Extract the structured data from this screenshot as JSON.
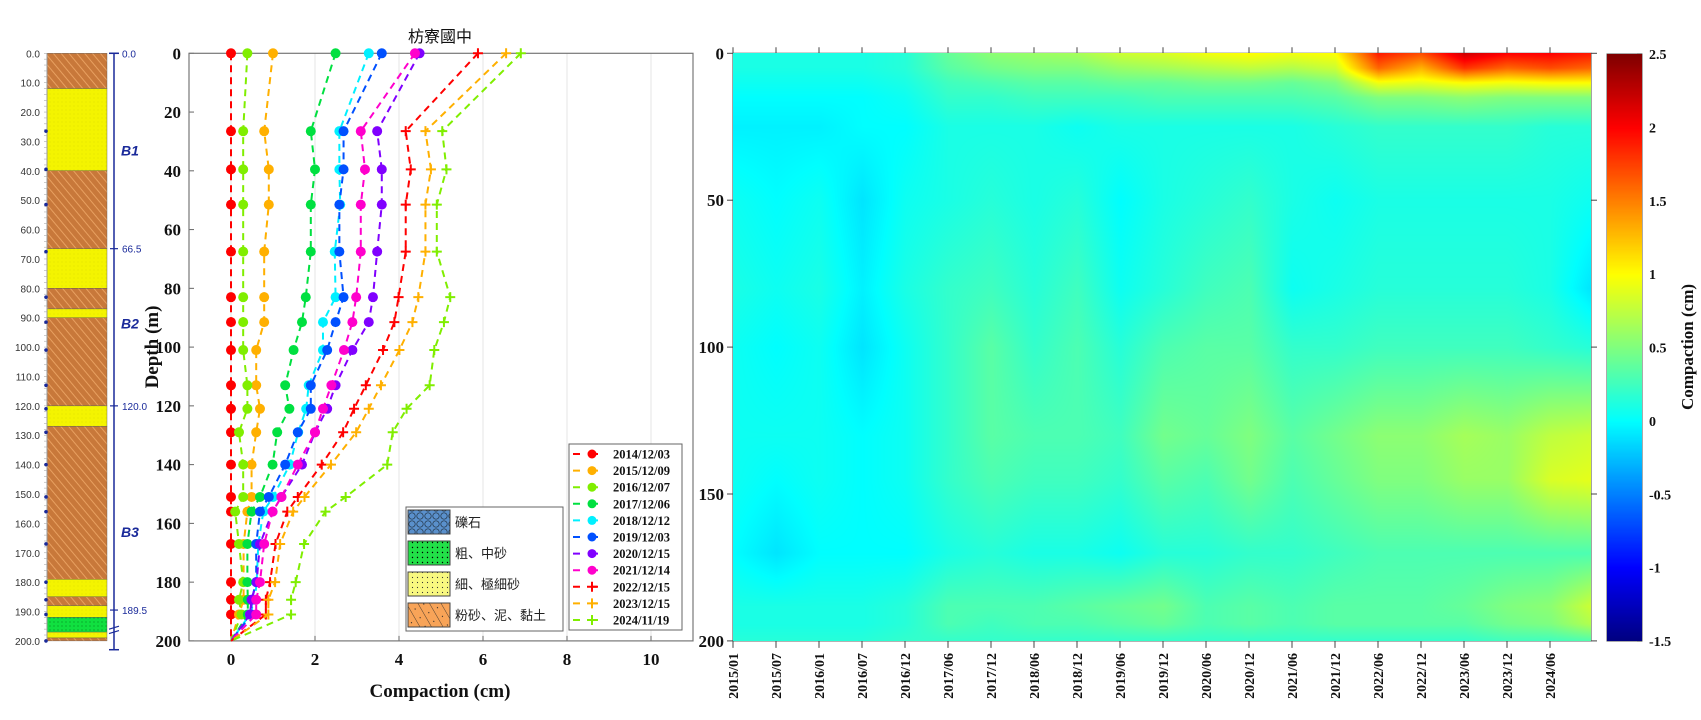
{
  "chart_data": [
    {
      "type": "table",
      "title": "borehole-lithology-column",
      "depth_labels": [
        "0.0",
        "10.0",
        "20.0",
        "30.0",
        "40.0",
        "50.0",
        "60.0",
        "70.0",
        "80.0",
        "90.0",
        "100.0",
        "110.0",
        "120.0",
        "130.0",
        "140.0",
        "150.0",
        "160.0",
        "170.0",
        "180.0",
        "190.0",
        "200.0"
      ],
      "unit_boundaries": [
        {
          "depth": 0,
          "label": "0.0"
        },
        {
          "depth": 66.5,
          "label": "66.5"
        },
        {
          "depth": 120,
          "label": "120.0"
        },
        {
          "depth": 189.5,
          "label": "189.5"
        }
      ],
      "units": [
        {
          "name": "B1",
          "depth": 33
        },
        {
          "name": "B2",
          "depth": 92
        },
        {
          "name": "B3",
          "depth": 163
        }
      ],
      "layers": [
        {
          "top": 0,
          "bottom": 12,
          "type": "mud"
        },
        {
          "top": 12,
          "bottom": 40,
          "type": "fine"
        },
        {
          "top": 40,
          "bottom": 66.5,
          "type": "mud"
        },
        {
          "top": 66.5,
          "bottom": 80,
          "type": "fine"
        },
        {
          "top": 80,
          "bottom": 87,
          "type": "mud"
        },
        {
          "top": 87,
          "bottom": 90,
          "type": "fine"
        },
        {
          "top": 90,
          "bottom": 120,
          "type": "mud"
        },
        {
          "top": 120,
          "bottom": 127,
          "type": "fine"
        },
        {
          "top": 127,
          "bottom": 179,
          "type": "mud"
        },
        {
          "top": 179,
          "bottom": 185,
          "type": "fine"
        },
        {
          "top": 185,
          "bottom": 188,
          "type": "mud"
        },
        {
          "top": 188,
          "bottom": 192,
          "type": "fine"
        },
        {
          "top": 192,
          "bottom": 197,
          "type": "coarse"
        },
        {
          "top": 197,
          "bottom": 199,
          "type": "fine"
        },
        {
          "top": 199,
          "bottom": 200,
          "type": "mud"
        }
      ],
      "sensor_depths": [
        26.5,
        39.5,
        51.5,
        67.5,
        83,
        91.5,
        101,
        113,
        121,
        129,
        140,
        151,
        156,
        167,
        180,
        186,
        191,
        200
      ]
    },
    {
      "type": "line",
      "title": "枋寮國中",
      "xlabel": "Compaction (cm)",
      "ylabel": "Depth (m)",
      "xlim": [
        -1,
        11
      ],
      "ylim": [
        0,
        200
      ],
      "y_reversed": true,
      "grid": "x",
      "xticks": [
        "0",
        "2",
        "4",
        "6",
        "8",
        "10"
      ],
      "yticks": [
        "0",
        "20",
        "40",
        "60",
        "80",
        "100",
        "120",
        "140",
        "160",
        "180",
        "200"
      ],
      "depths": [
        0,
        26.5,
        39.5,
        51.5,
        67.5,
        83,
        91.5,
        101,
        113,
        121,
        129,
        140,
        151,
        156,
        167,
        180,
        186,
        191,
        200
      ],
      "legend_position": "bottom-right",
      "series": [
        {
          "name": "2014/12/03",
          "color": "#ff0000",
          "marker": "dot",
          "values": [
            0,
            0,
            0,
            0,
            0,
            0,
            0,
            0,
            0,
            0,
            0,
            0,
            0,
            0,
            0,
            0,
            0,
            0,
            0
          ]
        },
        {
          "name": "2015/12/09",
          "color": "#ffb000",
          "marker": "dot",
          "values": [
            1.0,
            0.79,
            0.9,
            0.9,
            0.79,
            0.79,
            0.79,
            0.6,
            0.6,
            0.69,
            0.6,
            0.49,
            0.49,
            0.39,
            0.3,
            0.3,
            0.3,
            0.19,
            0
          ]
        },
        {
          "name": "2016/12/07",
          "color": "#80ee00",
          "marker": "dot",
          "values": [
            0.39,
            0.29,
            0.29,
            0.29,
            0.29,
            0.29,
            0.29,
            0.29,
            0.39,
            0.39,
            0.19,
            0.29,
            0.29,
            0.1,
            0.19,
            0.29,
            0.19,
            0.25,
            0
          ]
        },
        {
          "name": "2017/12/06",
          "color": "#00e040",
          "marker": "dot",
          "values": [
            2.49,
            1.9,
            2.0,
            1.9,
            1.9,
            1.78,
            1.69,
            1.49,
            1.29,
            1.39,
            1.1,
            0.99,
            0.69,
            0.49,
            0.39,
            0.39,
            0.4,
            0.4,
            0
          ]
        },
        {
          "name": "2018/12/12",
          "color": "#00f0ff",
          "marker": "dot",
          "values": [
            3.28,
            2.58,
            2.58,
            2.6,
            2.47,
            2.49,
            2.19,
            2.19,
            1.85,
            1.79,
            1.6,
            1.4,
            1.0,
            0.77,
            0.65,
            0.61,
            0.57,
            0.45,
            0
          ]
        },
        {
          "name": "2019/12/03",
          "color": "#0050ff",
          "marker": "dot",
          "values": [
            3.59,
            2.68,
            2.68,
            2.58,
            2.58,
            2.68,
            2.49,
            2.29,
            1.9,
            1.9,
            1.59,
            1.29,
            0.9,
            0.69,
            0.6,
            0.6,
            0.49,
            0.49,
            0
          ]
        },
        {
          "name": "2020/12/15",
          "color": "#8000ff",
          "marker": "dot",
          "values": [
            4.49,
            3.48,
            3.59,
            3.59,
            3.48,
            3.38,
            3.28,
            2.89,
            2.49,
            2.29,
            2.0,
            1.69,
            1.2,
            0.99,
            0.69,
            0.61,
            0.49,
            0.45,
            0
          ]
        },
        {
          "name": "2021/12/14",
          "color": "#ff00cc",
          "marker": "dot",
          "values": [
            4.38,
            3.09,
            3.19,
            3.09,
            3.09,
            2.98,
            2.89,
            2.69,
            2.39,
            2.19,
            2.0,
            1.59,
            1.2,
            0.99,
            0.79,
            0.69,
            0.6,
            0.6,
            0
          ]
        },
        {
          "name": "2022/12/15",
          "color": "#ff0000",
          "marker": "plus",
          "values": [
            5.88,
            4.16,
            4.28,
            4.16,
            4.16,
            3.99,
            3.89,
            3.62,
            3.21,
            2.93,
            2.67,
            2.16,
            1.59,
            1.34,
            1.06,
            0.93,
            0.83,
            0.83,
            0
          ]
        },
        {
          "name": "2023/12/15",
          "color": "#ffb000",
          "marker": "plus",
          "values": [
            6.55,
            4.63,
            4.76,
            4.63,
            4.63,
            4.46,
            4.32,
            4.01,
            3.57,
            3.28,
            2.98,
            2.38,
            1.75,
            1.48,
            1.17,
            1.05,
            0.89,
            0.89,
            0
          ]
        },
        {
          "name": "2024/11/19",
          "color": "#80ee00",
          "marker": "plus",
          "values": [
            6.9,
            5.03,
            5.13,
            4.9,
            4.9,
            5.22,
            5.07,
            4.84,
            4.73,
            4.18,
            3.85,
            3.72,
            2.73,
            2.25,
            1.74,
            1.54,
            1.43,
            1.43,
            0
          ]
        }
      ],
      "lithology_legend": [
        {
          "label": "礫石",
          "type": "gravel"
        },
        {
          "label": "粗、中砂",
          "type": "coarse"
        },
        {
          "label": "細、極細砂",
          "type": "fine"
        },
        {
          "label": "粉砂、泥、黏土",
          "type": "mud"
        }
      ]
    },
    {
      "type": "heatmap",
      "ylabel": "",
      "colorbar_label": "Compaction (cm)",
      "colormap": "jet",
      "clim": [
        -1.5,
        2.5
      ],
      "colorbar_ticks": [
        "2.5",
        "2",
        "1.5",
        "1",
        "0.5",
        "0",
        "-0.5",
        "-1",
        "-1.5"
      ],
      "ylim": [
        0,
        200
      ],
      "yticks": [
        "0",
        "50",
        "100",
        "150",
        "200"
      ],
      "xticks": [
        "2015/01",
        "2015/07",
        "2016/01",
        "2016/07",
        "2016/12",
        "2017/06",
        "2017/12",
        "2018/06",
        "2018/12",
        "2019/06",
        "2019/12",
        "2020/06",
        "2020/12",
        "2021/06",
        "2021/12",
        "2022/06",
        "2022/12",
        "2023/06",
        "2023/12",
        "2024/06"
      ],
      "grid_depths": [
        0,
        5,
        10,
        15,
        25,
        50,
        80,
        100,
        130,
        145,
        170,
        188,
        194,
        200
      ],
      "grid_values": [
        [
          0.1,
          0.1,
          0.1,
          0.1,
          0.15,
          0.4,
          0.55,
          0.6,
          0.65,
          0.8,
          0.85,
          0.95,
          1.0,
          0.95,
          1.0,
          1.9,
          1.7,
          2.2,
          2.0,
          2.0,
          1.9
        ],
        [
          0.1,
          0.1,
          0.1,
          0.1,
          0.15,
          0.35,
          0.45,
          0.5,
          0.5,
          0.6,
          0.65,
          0.7,
          0.75,
          0.7,
          0.8,
          1.6,
          1.3,
          1.8,
          1.6,
          1.7,
          1.6
        ],
        [
          0.05,
          0.05,
          0.05,
          0.05,
          0.1,
          0.25,
          0.3,
          0.35,
          0.35,
          0.4,
          0.4,
          0.45,
          0.45,
          0.4,
          0.5,
          0.95,
          0.9,
          1.0,
          0.95,
          1.0,
          1.0
        ],
        [
          0.0,
          0.0,
          0.0,
          0.0,
          0.05,
          0.2,
          0.2,
          0.25,
          0.25,
          0.25,
          0.3,
          0.3,
          0.3,
          0.3,
          0.35,
          0.5,
          0.5,
          0.55,
          0.5,
          0.5,
          0.5
        ],
        [
          -0.05,
          -0.05,
          -0.05,
          0,
          0,
          0.1,
          0.1,
          0.1,
          0.05,
          0.1,
          0.1,
          0.1,
          0.1,
          0.1,
          0.15,
          0.2,
          0.2,
          0.2,
          0.2,
          0.15,
          0.15
        ],
        [
          0.05,
          0.0,
          0.05,
          -0.1,
          0.05,
          0.1,
          0.15,
          0.1,
          0.15,
          0.0,
          0.1,
          0.15,
          0.2,
          0.1,
          0.05,
          0.1,
          0.1,
          0.1,
          0.1,
          0.1,
          0.05
        ],
        [
          0.1,
          0.05,
          0.1,
          -0.05,
          0.1,
          0.2,
          0.25,
          0.15,
          0.25,
          0.05,
          0.15,
          0.25,
          0.3,
          0.05,
          0.1,
          0.15,
          0.15,
          0.15,
          0.15,
          0.1,
          -0.1
        ],
        [
          0.05,
          0.0,
          0.05,
          -0.1,
          0.05,
          0.2,
          0.35,
          0.2,
          0.3,
          0.15,
          0.3,
          0.35,
          0.35,
          0.2,
          0.2,
          0.25,
          0.25,
          0.25,
          0.25,
          0.2,
          0.15
        ],
        [
          0.05,
          0.05,
          0.05,
          0.0,
          0.05,
          0.2,
          0.35,
          0.3,
          0.3,
          0.25,
          0.45,
          0.4,
          0.5,
          0.35,
          0.45,
          0.55,
          0.55,
          0.65,
          0.6,
          0.75,
          0.8
        ],
        [
          0.05,
          0.0,
          0.05,
          0.0,
          0.05,
          0.2,
          0.3,
          0.25,
          0.25,
          0.2,
          0.35,
          0.3,
          0.45,
          0.3,
          0.4,
          0.5,
          0.5,
          0.6,
          0.6,
          0.85,
          0.9
        ],
        [
          0.0,
          -0.1,
          0.0,
          0.0,
          0.0,
          0.1,
          0.15,
          0.1,
          0.1,
          0.05,
          0.15,
          0.15,
          0.2,
          0.2,
          0.25,
          0.3,
          0.3,
          0.3,
          0.3,
          0.3,
          0.3
        ],
        [
          0.1,
          0.1,
          0.1,
          0.1,
          0.15,
          0.3,
          0.3,
          0.3,
          0.35,
          0.4,
          0.45,
          0.3,
          0.35,
          0.3,
          0.35,
          0.35,
          0.35,
          0.4,
          0.5,
          0.55,
          0.8
        ],
        [
          0.1,
          0.1,
          0.1,
          0.1,
          0.15,
          0.3,
          0.25,
          0.3,
          0.3,
          0.35,
          0.4,
          0.3,
          0.35,
          0.3,
          0.35,
          0.35,
          0.35,
          0.35,
          0.45,
          0.5,
          0.7
        ],
        [
          0.15,
          0.15,
          0.15,
          0.15,
          0.2,
          0.2,
          0.2,
          0.2,
          0.2,
          0.2,
          0.2,
          0.2,
          0.2,
          0.2,
          0.2,
          0.2,
          0.2,
          0.2,
          0.25,
          0.25,
          0.3
        ]
      ]
    }
  ]
}
